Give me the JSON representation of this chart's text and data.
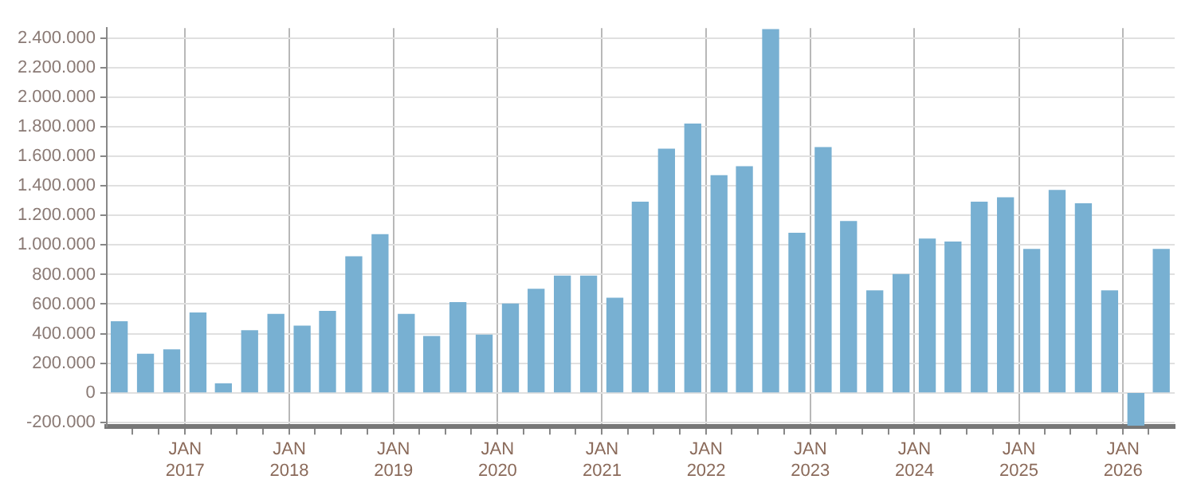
{
  "chart_data": {
    "type": "bar",
    "x": [
      "2016-05-15",
      "2016-08-15",
      "2016-11-15",
      "2017-02-15",
      "2017-05-15",
      "2017-08-15",
      "2017-11-15",
      "2018-02-15",
      "2018-05-15",
      "2018-08-15",
      "2018-11-15",
      "2019-02-15",
      "2019-05-15",
      "2019-08-15",
      "2019-11-15",
      "2020-02-15",
      "2020-05-15",
      "2020-08-15",
      "2020-11-15",
      "2021-02-15",
      "2021-05-15",
      "2021-08-15",
      "2021-11-15",
      "2022-02-15",
      "2022-05-15",
      "2022-08-15",
      "2022-11-15",
      "2023-02-15",
      "2023-05-15",
      "2023-08-15",
      "2023-11-15",
      "2024-02-15",
      "2024-05-15",
      "2024-08-15",
      "2024-11-15",
      "2025-02-15",
      "2025-05-15",
      "2025-08-15",
      "2025-11-15",
      "2026-02-15",
      "2026-05-15"
    ],
    "values": [
      480000,
      260000,
      290000,
      540000,
      60000,
      420000,
      530000,
      450000,
      550000,
      920000,
      1070000,
      530000,
      380000,
      610000,
      390000,
      600000,
      700000,
      790000,
      790000,
      640000,
      1290000,
      1650000,
      1820000,
      1470000,
      1530000,
      2460000,
      1080000,
      1660000,
      1160000,
      690000,
      800000,
      1040000,
      1020000,
      1290000,
      1320000,
      970000,
      1370000,
      1280000,
      690000,
      -220000,
      970000
    ],
    "color": "#78b0d2",
    "xlim": [
      "2016-04-01",
      "2026-07-01"
    ],
    "xticks": [
      {
        "value": "2016-07-01",
        "label": null
      },
      {
        "value": "2016-10-01",
        "label": null
      },
      {
        "value": "2017-01-01",
        "label": "JAN 2017"
      },
      {
        "value": "2017-04-01",
        "label": null
      },
      {
        "value": "2017-07-01",
        "label": null
      },
      {
        "value": "2017-10-01",
        "label": null
      },
      {
        "value": "2018-01-01",
        "label": "JAN 2018"
      },
      {
        "value": "2018-04-01",
        "label": null
      },
      {
        "value": "2018-07-01",
        "label": null
      },
      {
        "value": "2018-10-01",
        "label": null
      },
      {
        "value": "2019-01-01",
        "label": "JAN 2019"
      },
      {
        "value": "2019-04-01",
        "label": null
      },
      {
        "value": "2019-07-01",
        "label": null
      },
      {
        "value": "2019-10-01",
        "label": null
      },
      {
        "value": "2020-01-01",
        "label": "JAN 2020"
      },
      {
        "value": "2020-04-01",
        "label": null
      },
      {
        "value": "2020-07-01",
        "label": null
      },
      {
        "value": "2020-10-01",
        "label": null
      },
      {
        "value": "2021-01-01",
        "label": "JAN 2021"
      },
      {
        "value": "2021-04-01",
        "label": null
      },
      {
        "value": "2021-07-01",
        "label": null
      },
      {
        "value": "2021-10-01",
        "label": null
      },
      {
        "value": "2022-01-01",
        "label": "JAN 2022"
      },
      {
        "value": "2022-04-01",
        "label": null
      },
      {
        "value": "2022-07-01",
        "label": null
      },
      {
        "value": "2022-10-01",
        "label": null
      },
      {
        "value": "2023-01-01",
        "label": "JAN 2023"
      },
      {
        "value": "2023-04-01",
        "label": null
      },
      {
        "value": "2023-07-01",
        "label": null
      },
      {
        "value": "2023-10-01",
        "label": null
      },
      {
        "value": "2024-01-01",
        "label": "JAN 2024"
      },
      {
        "value": "2024-04-01",
        "label": null
      },
      {
        "value": "2024-07-01",
        "label": null
      },
      {
        "value": "2024-10-01",
        "label": null
      },
      {
        "value": "2025-01-01",
        "label": "JAN 2025"
      },
      {
        "value": "2025-04-01",
        "label": null
      },
      {
        "value": "2025-07-01",
        "label": null
      },
      {
        "value": "2025-10-01",
        "label": null
      },
      {
        "value": "2026-01-01",
        "label": "JAN 2026"
      },
      {
        "value": "2026-04-01",
        "label": null
      }
    ],
    "ylim": [
      -230000,
      2470000
    ],
    "yticks": [
      {
        "value": -200000,
        "label": "-200.000"
      },
      {
        "value": 0,
        "label": "0"
      },
      {
        "value": 200000,
        "label": "200.000"
      },
      {
        "value": 400000,
        "label": "400.000"
      },
      {
        "value": 600000,
        "label": "600.000"
      },
      {
        "value": 800000,
        "label": "800.000"
      },
      {
        "value": 1000000,
        "label": "1.000.000"
      },
      {
        "value": 1200000,
        "label": "1.200.000"
      },
      {
        "value": 1400000,
        "label": "1.400.000"
      },
      {
        "value": 1600000,
        "label": "1.600.000"
      },
      {
        "value": 1800000,
        "label": "1.800.000"
      },
      {
        "value": 2000000,
        "label": "2.000.000"
      },
      {
        "value": 2200000,
        "label": "2.200.000"
      },
      {
        "value": 2400000,
        "label": "2.400.000"
      }
    ],
    "grid": true,
    "legend": false
  }
}
